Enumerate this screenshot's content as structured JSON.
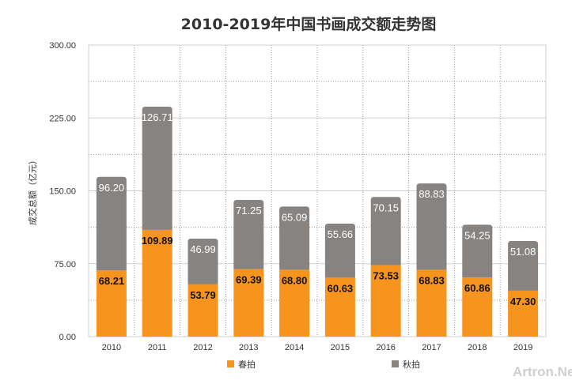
{
  "chart_data": {
    "type": "bar",
    "stacked": true,
    "title": "2010-2019年中国书画成交额走势图",
    "ylabel": "成交总额（亿元）",
    "xlabel": "",
    "ylim": [
      0,
      300
    ],
    "yticks": [
      "0.00",
      "75.00",
      "150.00",
      "225.00",
      "300.00"
    ],
    "categories": [
      "2010",
      "2011",
      "2012",
      "2013",
      "2014",
      "2015",
      "2016",
      "2017",
      "2018",
      "2019"
    ],
    "series": [
      {
        "name": "春拍",
        "color": "#f7941d",
        "values": [
          68.21,
          109.89,
          53.79,
          69.39,
          68.8,
          60.63,
          73.53,
          68.83,
          60.86,
          47.3
        ],
        "labels": [
          "68.21",
          "109.89",
          "53.79",
          "69.39",
          "68.80",
          "60.63",
          "73.53",
          "68.83",
          "60.86",
          "47.30"
        ]
      },
      {
        "name": "秋拍",
        "color": "#868380",
        "values": [
          96.2,
          126.71,
          46.99,
          71.25,
          65.09,
          55.66,
          70.15,
          88.83,
          54.25,
          51.08
        ],
        "labels": [
          "96.20",
          "126.71",
          "46.99",
          "71.25",
          "65.09",
          "55.66",
          "70.15",
          "88.83",
          "54.25",
          "51.08"
        ]
      }
    ],
    "grid": true,
    "legend": "bottom"
  },
  "watermark": "Artron.Net"
}
